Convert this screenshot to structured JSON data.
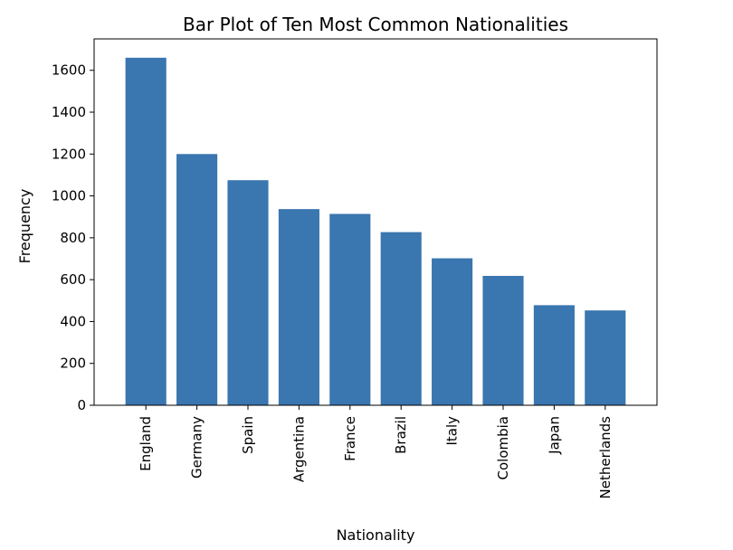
{
  "chart_data": {
    "type": "bar",
    "title": "Bar Plot of Ten Most Common Nationalities",
    "xlabel": "Nationality",
    "ylabel": "Frequency",
    "categories": [
      "England",
      "Germany",
      "Spain",
      "Argentina",
      "France",
      "Brazil",
      "Italy",
      "Colombia",
      "Japan",
      "Netherlands"
    ],
    "values": [
      1660,
      1200,
      1075,
      937,
      914,
      827,
      702,
      618,
      478,
      453
    ],
    "ylim": [
      0,
      1750
    ],
    "yticks": [
      0,
      200,
      400,
      600,
      800,
      1000,
      1200,
      1400,
      1600
    ],
    "bar_color": "#3a76af",
    "grid": false,
    "legend": "none"
  }
}
